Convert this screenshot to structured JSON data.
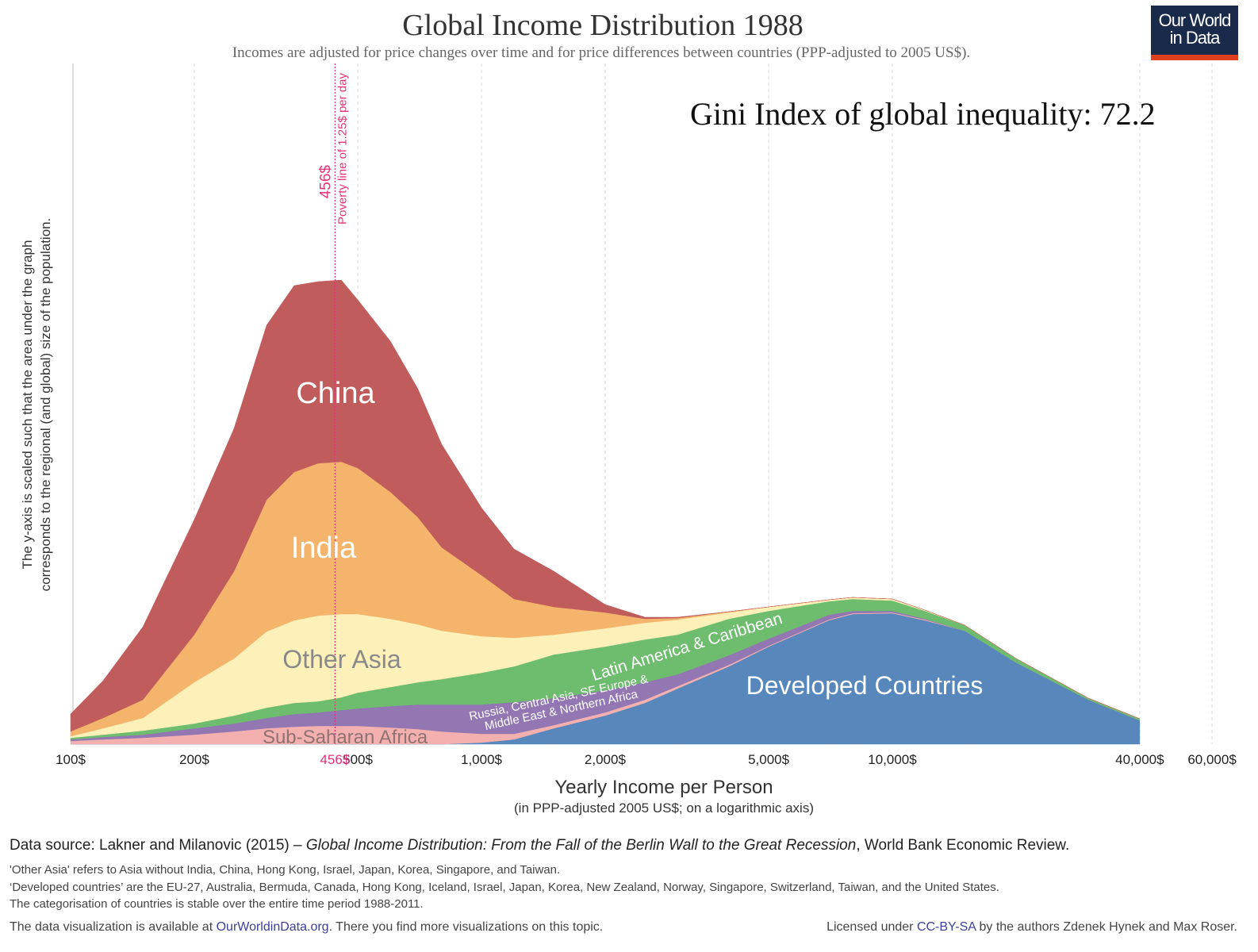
{
  "title": "Global Income Distribution 1988",
  "subtitle": "Incomes are adjusted for price changes over time and for price differences between countries (PPP-adjusted to 2005 US$).",
  "logo": {
    "line1": "Our World",
    "line2": "in Data",
    "bg": "#1a2a4a",
    "accent": "#e0401e"
  },
  "gini_text": "Gini Index of global inequality: 72.2",
  "chart_data": {
    "type": "area",
    "stacked": true,
    "x_scale": "log",
    "xlim": [
      100,
      60000
    ],
    "ylim": [
      0,
      600
    ],
    "grid": "vertical dashed",
    "xlabel": "Yearly Income per Person",
    "xlabel_sub": "(in PPP-adjusted 2005 US$; on a logarithmic axis)",
    "ylabel_line1": "The y-axis is scaled such that the area under the graph",
    "ylabel_line2": "corresponds to the regional (and global) size of the population.",
    "x_ticks": [
      {
        "value": 100,
        "label": "100$"
      },
      {
        "value": 200,
        "label": "200$"
      },
      {
        "value": 500,
        "label": "500$"
      },
      {
        "value": 1000,
        "label": "1,000$"
      },
      {
        "value": 2000,
        "label": "2,000$"
      },
      {
        "value": 5000,
        "label": "5,000$"
      },
      {
        "value": 10000,
        "label": "10,000$"
      },
      {
        "value": 40000,
        "label": "40,000$"
      },
      {
        "value": 60000,
        "label": "60,000$"
      }
    ],
    "poverty_line": {
      "value": 456,
      "tick_label": "456$",
      "label": "456$",
      "sublabel": "Poverty line of 1.25$ per day",
      "color": "#e8307a"
    },
    "x": [
      100,
      120,
      150,
      200,
      250,
      300,
      350,
      400,
      456,
      500,
      600,
      700,
      800,
      1000,
      1200,
      1500,
      2000,
      2500,
      3000,
      4000,
      5000,
      7000,
      8000,
      10000,
      12000,
      15000,
      20000,
      30000,
      40000
    ],
    "series": [
      {
        "name": "Developed Countries",
        "color": "#5887bb",
        "values": [
          0,
          0,
          0,
          0,
          0,
          0,
          0,
          0,
          0,
          0,
          0,
          0,
          0,
          2,
          6,
          20,
          36,
          52,
          70,
          98,
          123,
          156,
          164,
          165,
          156,
          143,
          103,
          56,
          30
        ]
      },
      {
        "name": "Sub-Saharan Africa",
        "color": "#f4b0ae",
        "values": [
          4,
          6,
          8,
          12,
          16,
          20,
          22,
          23,
          23,
          23,
          21,
          19,
          16,
          11,
          7,
          4,
          4,
          4,
          3,
          2,
          1,
          1,
          1,
          1,
          1,
          0,
          0,
          0,
          0
        ]
      },
      {
        "name": "Russia, Central Asia, SE Europe & Middle East & Northern Africa",
        "color": "#9277b3",
        "values": [
          2,
          3,
          4,
          8,
          10,
          13,
          16,
          17,
          20,
          22,
          27,
          31,
          34,
          37,
          40,
          34,
          28,
          22,
          15,
          12,
          9,
          6,
          3,
          2,
          1,
          0,
          0,
          0,
          0
        ]
      },
      {
        "name": "Latin America & Caribbean",
        "color": "#6ebd6e",
        "values": [
          2,
          3,
          5,
          6,
          10,
          13,
          14,
          14,
          16,
          20,
          24,
          28,
          32,
          40,
          45,
          55,
          55,
          54,
          50,
          46,
          35,
          17,
          15,
          13,
          10,
          7,
          5,
          2,
          2
        ]
      },
      {
        "name": "Other Asia",
        "color": "#fdf0b8",
        "values": [
          2,
          8,
          16,
          52,
          72,
          96,
          104,
          108,
          105,
          99,
          86,
          73,
          61,
          46,
          36,
          25,
          23,
          21,
          19,
          8,
          5,
          2,
          2,
          2,
          1,
          0,
          0,
          0,
          0
        ]
      },
      {
        "name": "India",
        "color": "#f4b46c",
        "values": [
          6,
          13,
          23,
          60,
          110,
          166,
          187,
          192,
          192,
          184,
          160,
          135,
          105,
          77,
          49,
          35,
          20,
          5,
          2,
          1,
          0,
          0,
          0,
          0,
          0,
          0,
          0,
          0,
          0
        ]
      },
      {
        "name": "China",
        "color": "#c15c5c",
        "values": [
          22,
          47,
          92,
          145,
          180,
          220,
          235,
          229,
          229,
          212,
          190,
          162,
          130,
          85,
          63,
          45,
          10,
          2,
          1,
          0,
          0,
          0,
          0,
          0,
          0,
          0,
          0,
          0,
          0
        ]
      }
    ],
    "annotations": {
      "china": "China",
      "india": "India",
      "other_asia": "Other Asia",
      "latin_america": "Latin America & Caribbean",
      "russia_line1": "Russia, Central Asia, SE Europe &",
      "russia_line2": "Middle East & Northern Africa",
      "developed": "Developed Countries",
      "ssa": "Sub-Saharan Africa"
    }
  },
  "footer": {
    "source_prefix": "Data source: Lakner and Milanovic (2015) – ",
    "source_title": "Global Income Distribution: From the Fall of the Berlin Wall to the Great Recession",
    "source_suffix": ", World Bank Economic Review.",
    "note1": "'Other Asia' refers to Asia without India, China, Hong Kong, Israel, Japan, Korea, Singapore, and Taiwan.",
    "note2": "‘Developed countries’ are the EU-27, Australia, Bermuda, Canada, Hong Kong, Iceland, Israel, Japan, Korea, New Zealand, Norway, Singapore, Switzerland, Taiwan, and the United States.",
    "note3": "The categorisation of countries is stable over the entire time period 1988-2011.",
    "avail_prefix": "The data visualization is available at ",
    "avail_link": "OurWorldinData.org",
    "avail_suffix": ". There you find more visualizations on this topic.",
    "license_prefix": "Licensed under ",
    "license_link": "CC-BY-SA",
    "license_suffix": " by the authors Zdenek Hynek and Max Roser."
  }
}
